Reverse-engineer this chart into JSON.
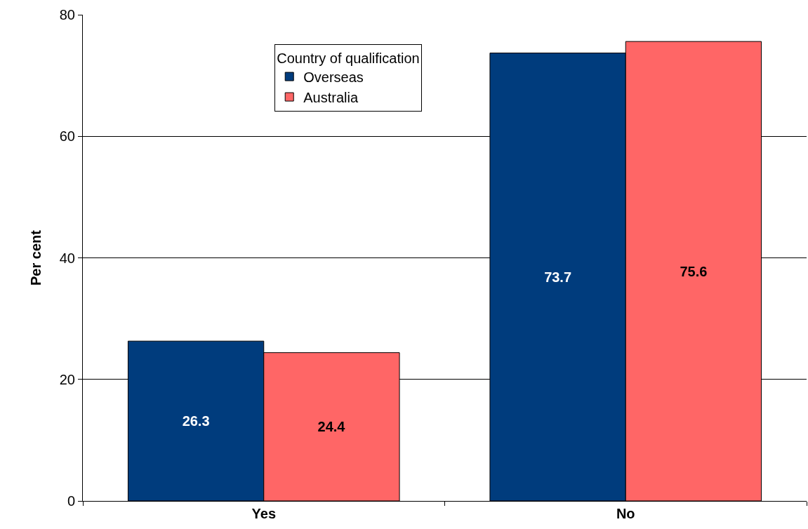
{
  "chart_data": {
    "type": "bar",
    "ylabel": "Per cent",
    "legend_title": "Country of qualification",
    "categories": [
      "Yes",
      "No"
    ],
    "series": [
      {
        "name": "Overseas",
        "color": "#003c7d",
        "values": [
          26.3,
          73.7
        ]
      },
      {
        "name": "Australia",
        "color": "#ff6666",
        "values": [
          24.4,
          75.6
        ]
      }
    ],
    "ylim": [
      0,
      80
    ],
    "yticks": [
      0,
      20,
      40,
      60,
      80
    ],
    "grid": "y",
    "legend": "top",
    "data_labels": true
  }
}
